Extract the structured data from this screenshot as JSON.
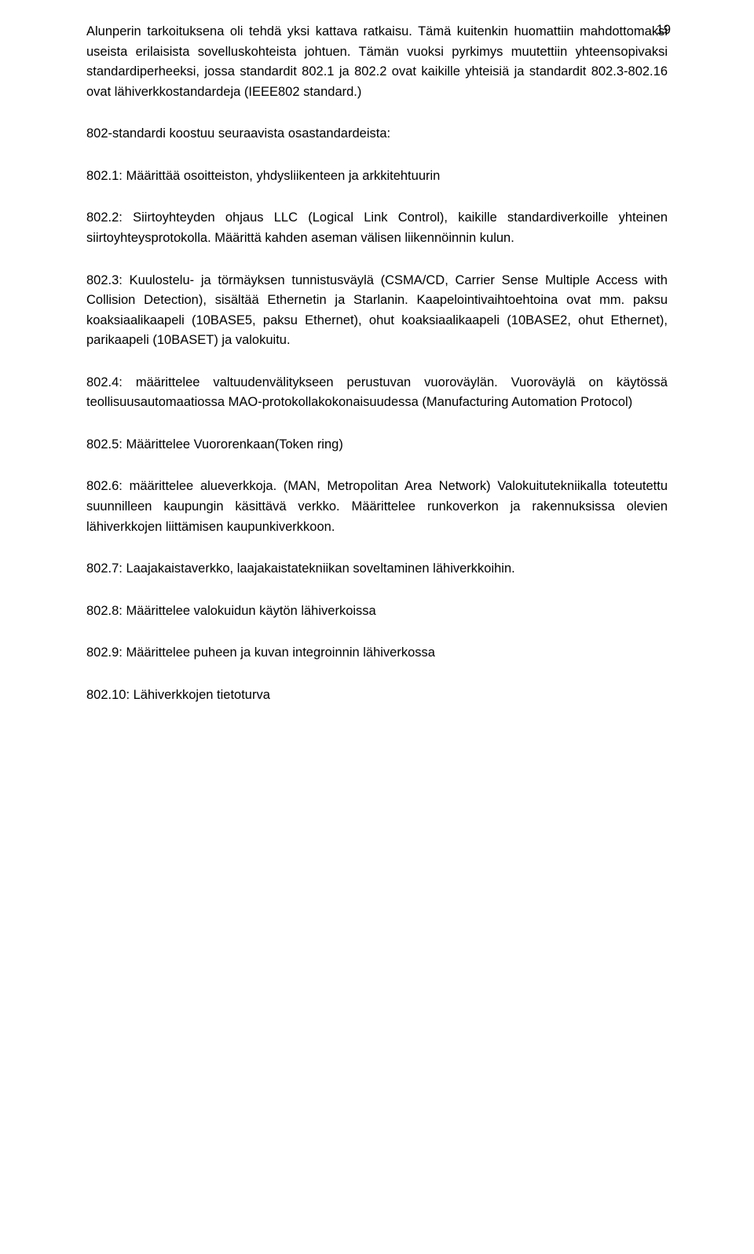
{
  "pageNumber": "19",
  "paragraphs": {
    "p1": "Alunperin tarkoituksena oli tehdä yksi kattava ratkaisu. Tämä kuitenkin huomattiin mahdottomaksi useista erilaisista sovelluskohteista johtuen. Tämän vuoksi pyrkimys muutettiin yhteensopivaksi standardiperheeksi, jossa standardit 802.1 ja 802.2 ovat kaikille yhteisiä ja standardit 802.3-802.16 ovat lähiverkkostandardeja (IEEE802 standard.)",
    "p2": "802-standardi koostuu seuraavista osastandardeista:",
    "p3": "802.1: Määrittää osoitteiston, yhdysliikenteen ja arkkitehtuurin",
    "p4": "802.2: Siirtoyhteyden ohjaus LLC (Logical Link Control), kaikille standardiverkoille yhteinen siirtoyhteysprotokolla. Määrittä kahden aseman välisen liikennöinnin kulun.",
    "p5": "802.3: Kuulostelu- ja törmäyksen tunnistusväylä (CSMA/CD, Carrier Sense Multiple Access with Collision Detection), sisältää Ethernetin ja Starlanin. Kaapelointivaihtoehtoina ovat mm. paksu koaksiaalikaapeli (10BASE5, paksu Ethernet), ohut koaksiaalikaapeli (10BASE2, ohut Ethernet), parikaapeli (10BASET) ja valokuitu.",
    "p6": "802.4: määrittelee valtuudenvälitykseen perustuvan vuoroväylän. Vuoroväylä on käytössä teollisuusautomaatiossa MAO-protokollakokonaisuudessa (Manufacturing Automation Protocol)",
    "p7": "802.5: Määrittelee Vuororenkaan(Token ring)",
    "p8": "802.6: määrittelee alueverkkoja. (MAN, Metropolitan Area Network) Valokuitutekniikalla toteutettu suunnilleen kaupungin käsittävä verkko. Määrittelee runkoverkon ja rakennuksissa olevien lähiverkkojen liittämisen kaupunkiverkkoon.",
    "p9": "802.7: Laajakaistaverkko, laajakaistatekniikan soveltaminen lähiverkkoihin.",
    "p10": "802.8: Määrittelee valokuidun käytön lähiverkoissa",
    "p11": "802.9: Määrittelee puheen ja kuvan integroinnin lähiverkossa",
    "p12": "802.10: Lähiverkkojen tietoturva"
  }
}
